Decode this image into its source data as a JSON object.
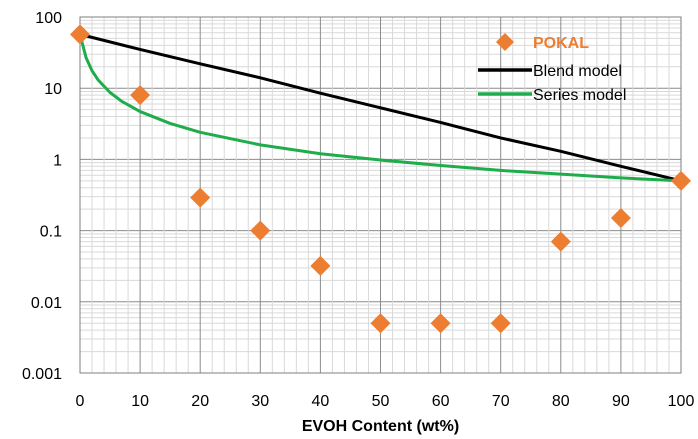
{
  "chart_data": {
    "type": "scatter",
    "title": "",
    "xlabel": "EVOH Content (wt%)",
    "ylabel": "",
    "xlim": [
      0,
      100
    ],
    "ylim": [
      0.001,
      100
    ],
    "yscale": "log",
    "grid": true,
    "legend_position": "top-right",
    "x_ticks": [
      "0",
      "10",
      "20",
      "30",
      "40",
      "50",
      "60",
      "70",
      "80",
      "90",
      "100"
    ],
    "y_ticks": [
      "100",
      "10",
      "1",
      "0.1",
      "0.01",
      "0.001"
    ],
    "series": [
      {
        "name": "POKAL",
        "type": "scatter",
        "marker": "diamond",
        "color": "#ED7D31",
        "x": [
          0,
          10,
          20,
          30,
          40,
          50,
          60,
          70,
          80,
          90,
          100
        ],
        "y": [
          57,
          8,
          0.29,
          0.1,
          0.032,
          0.005,
          0.005,
          0.005,
          0.07,
          0.15,
          0.5
        ]
      },
      {
        "name": "Blend model",
        "type": "line",
        "color": "#000000",
        "x": [
          0,
          10,
          20,
          30,
          40,
          50,
          60,
          70,
          80,
          90,
          100
        ],
        "y": [
          57,
          35,
          22,
          14,
          8.5,
          5.3,
          3.3,
          2.0,
          1.3,
          0.8,
          0.5
        ]
      },
      {
        "name": "Series model",
        "type": "line",
        "color": "#1EAD4A",
        "x": [
          0,
          1,
          2,
          3,
          5,
          7,
          10,
          15,
          20,
          30,
          40,
          50,
          60,
          70,
          80,
          90,
          100
        ],
        "y": [
          57,
          27,
          17.6,
          13.1,
          8.7,
          6.5,
          4.7,
          3.2,
          2.4,
          1.6,
          1.2,
          0.98,
          0.82,
          0.7,
          0.62,
          0.55,
          0.5
        ]
      }
    ]
  }
}
